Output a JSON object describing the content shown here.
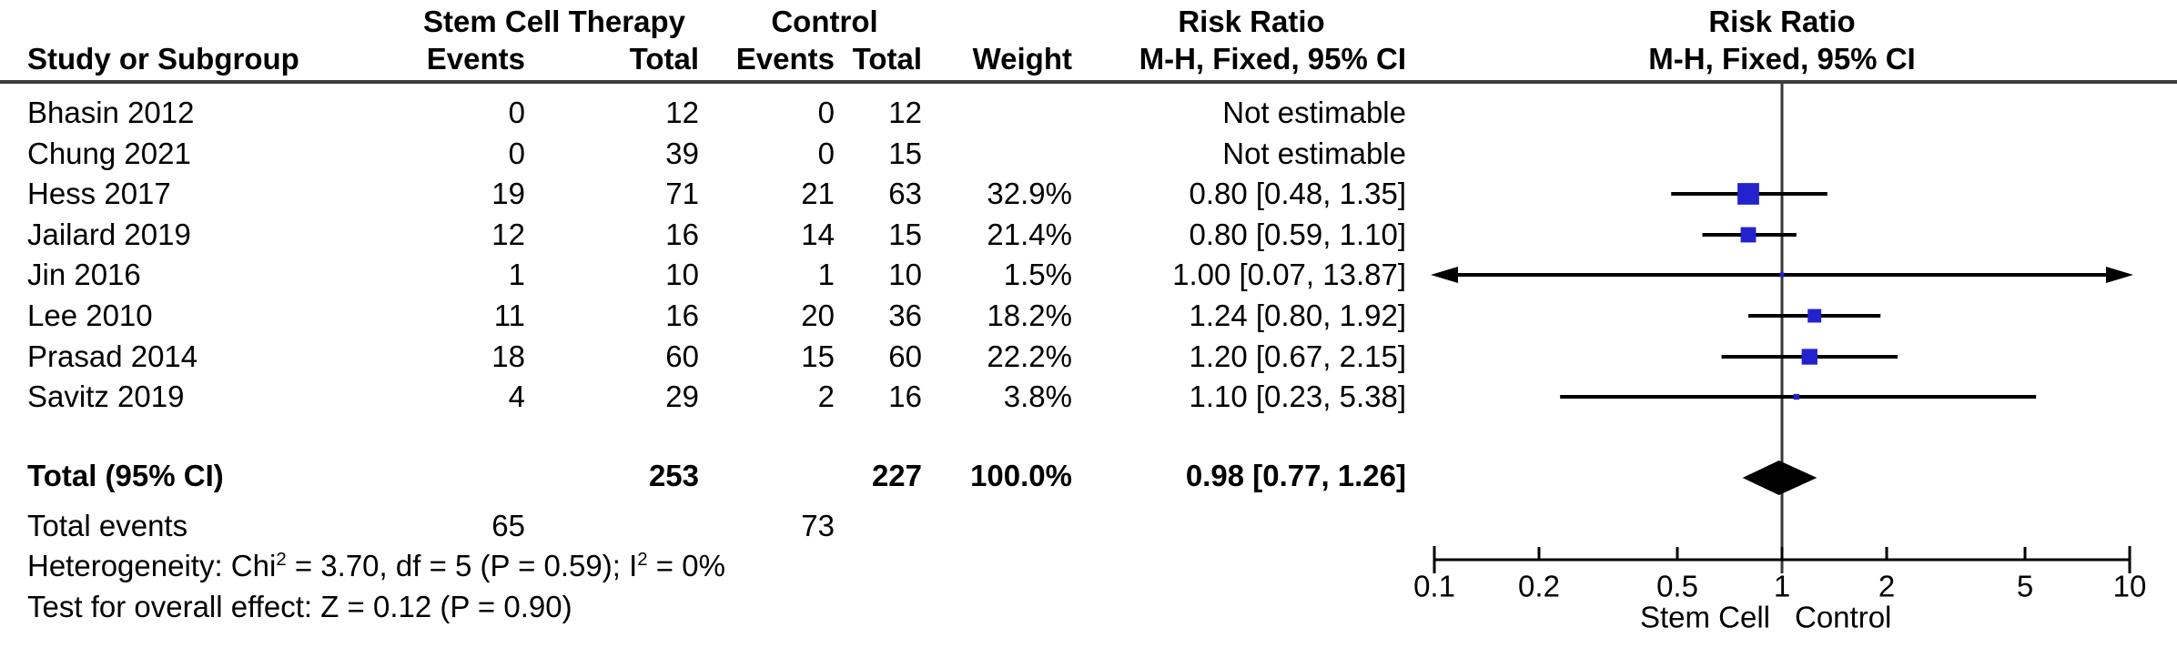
{
  "table": {
    "group1_header": "Stem Cell Therapy",
    "group2_header": "Control",
    "risk_ratio_header": "Risk Ratio",
    "method_header": "M-H, Fixed, 95% CI",
    "col_study": "Study or Subgroup",
    "col_events": "Events",
    "col_total": "Total",
    "col_weight": "Weight",
    "total_events_label": "Total events",
    "total_events_treatment": "65",
    "total_events_control": "73",
    "heterogeneity": {
      "p1": "Heterogeneity: Chi",
      "sup1": "2",
      "p2": " = 3.70, df = 5 (P = 0.59); I",
      "sup2": "2",
      "p3": " = 0%"
    },
    "overall_effect": "Test for overall effect: Z = 0.12 (P = 0.90)"
  },
  "colors": {
    "marker_blue": "#2323CD",
    "diamond_black": "#000000",
    "line_black": "#000000",
    "center_line": "#373737"
  },
  "chart_data": {
    "type": "forest",
    "effect_measure": "Risk Ratio (M-H, Fixed, 95% CI)",
    "x_axis": {
      "scale": "log",
      "min": 0.1,
      "max": 10,
      "ticks": [
        "0.1",
        "0.2",
        "0.5",
        "1",
        "2",
        "5",
        "10"
      ],
      "tick_values": [
        0.1,
        0.2,
        0.5,
        1,
        2,
        5,
        10
      ],
      "left_label": "Stem Cell",
      "right_label": "Control"
    },
    "studies": [
      {
        "name": "Bhasin 2012",
        "events1": "0",
        "total1": "12",
        "events2": "0",
        "total2": "12",
        "weight": "",
        "weight_value": 0,
        "ci_text": "Not estimable",
        "estimable": false
      },
      {
        "name": "Chung 2021",
        "events1": "0",
        "total1": "39",
        "events2": "0",
        "total2": "15",
        "weight": "",
        "weight_value": 0,
        "ci_text": "Not estimable",
        "estimable": false
      },
      {
        "name": "Hess 2017",
        "events1": "19",
        "total1": "71",
        "events2": "21",
        "total2": "63",
        "weight": "32.9%",
        "weight_value": 32.9,
        "ci_text": "0.80 [0.48, 1.35]",
        "estimable": true,
        "rr": 0.8,
        "lo": 0.48,
        "hi": 1.35
      },
      {
        "name": "Jailard 2019",
        "events1": "12",
        "total1": "16",
        "events2": "14",
        "total2": "15",
        "weight": "21.4%",
        "weight_value": 21.4,
        "ci_text": "0.80 [0.59, 1.10]",
        "estimable": true,
        "rr": 0.8,
        "lo": 0.59,
        "hi": 1.1
      },
      {
        "name": "Jin 2016",
        "events1": "1",
        "total1": "10",
        "events2": "1",
        "total2": "10",
        "weight": "1.5%",
        "weight_value": 1.5,
        "ci_text": "1.00 [0.07, 13.87]",
        "estimable": true,
        "rr": 1.0,
        "lo": 0.07,
        "hi": 13.87
      },
      {
        "name": "Lee 2010",
        "events1": "11",
        "total1": "16",
        "events2": "20",
        "total2": "36",
        "weight": "18.2%",
        "weight_value": 18.2,
        "ci_text": "1.24 [0.80, 1.92]",
        "estimable": true,
        "rr": 1.24,
        "lo": 0.8,
        "hi": 1.92
      },
      {
        "name": "Prasad 2014",
        "events1": "18",
        "total1": "60",
        "events2": "15",
        "total2": "60",
        "weight": "22.2%",
        "weight_value": 22.2,
        "ci_text": "1.20 [0.67, 2.15]",
        "estimable": true,
        "rr": 1.2,
        "lo": 0.67,
        "hi": 2.15
      },
      {
        "name": "Savitz 2019",
        "events1": "4",
        "total1": "29",
        "events2": "2",
        "total2": "16",
        "weight": "3.8%",
        "weight_value": 3.8,
        "ci_text": "1.10 [0.23, 5.38]",
        "estimable": true,
        "rr": 1.1,
        "lo": 0.23,
        "hi": 5.38
      }
    ],
    "total": {
      "label": "Total (95% CI)",
      "total1": "253",
      "total2": "227",
      "weight": "100.0%",
      "ci_text": "0.98 [0.77, 1.26]",
      "rr": 0.98,
      "lo": 0.77,
      "hi": 1.26
    }
  }
}
